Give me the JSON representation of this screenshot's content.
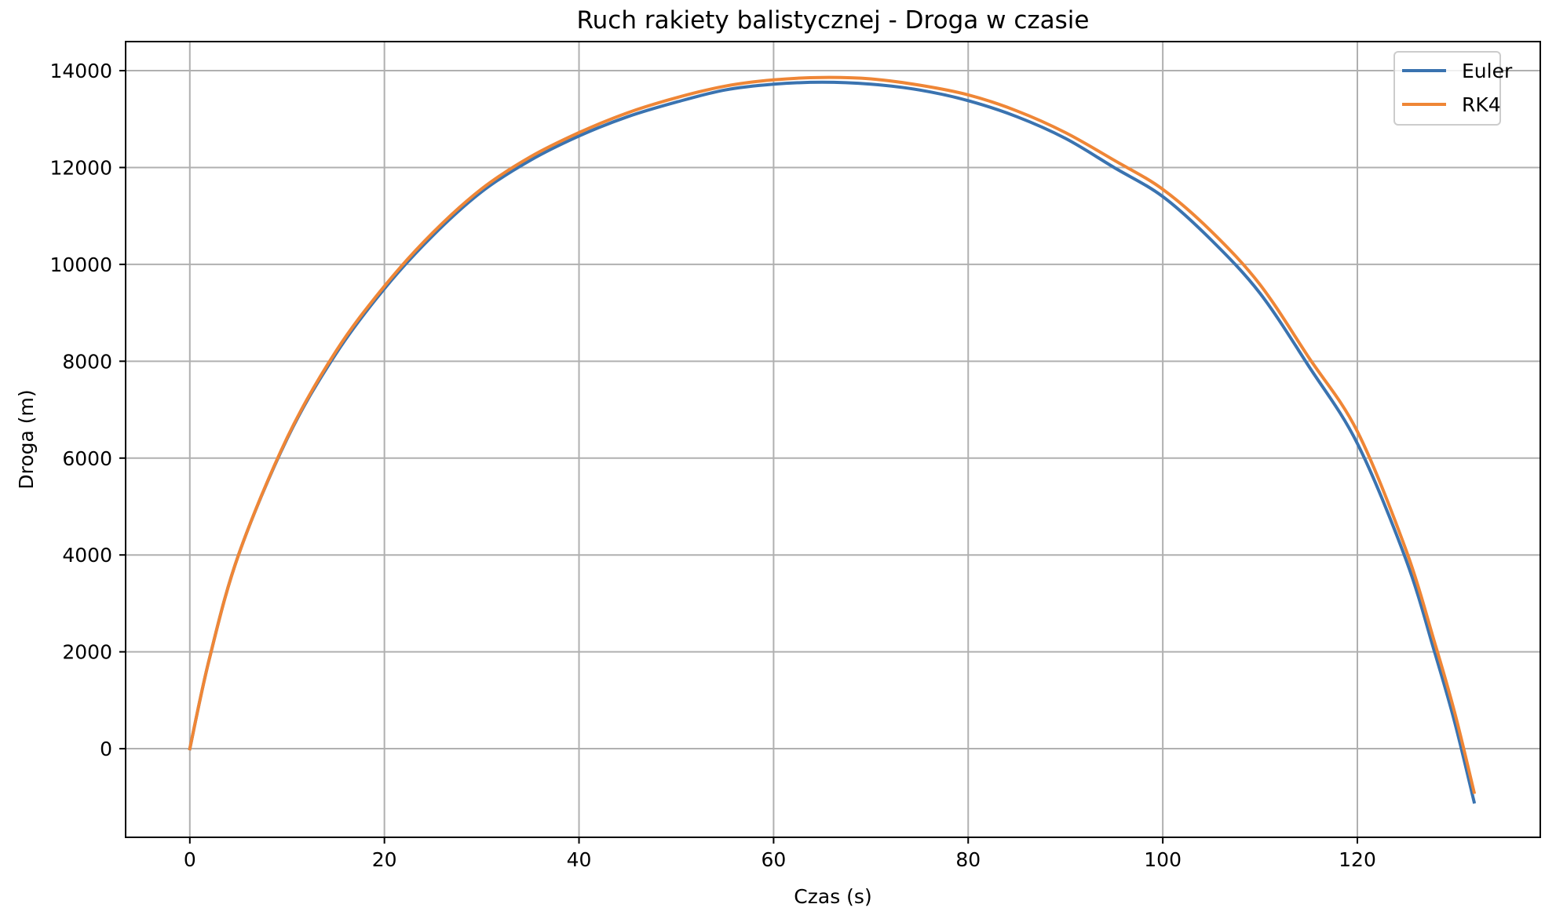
{
  "chart_data": {
    "type": "line",
    "title": "Ruch rakiety balistycznej - Droga w czasie",
    "xlabel": "Czas (s)",
    "ylabel": "Droga (m)",
    "xlim": [
      -6.6,
      138.8
    ],
    "ylim": [
      -1830,
      14600
    ],
    "xticks": [
      0,
      20,
      40,
      60,
      80,
      100,
      120
    ],
    "yticks": [
      0,
      2000,
      4000,
      6000,
      8000,
      10000,
      12000,
      14000
    ],
    "grid": true,
    "legend_position": "top-right",
    "series": [
      {
        "name": "Euler",
        "color": "#3a73b0",
        "x": [
          0,
          2,
          5,
          10,
          15,
          20,
          25,
          30,
          35,
          40,
          45,
          50,
          55,
          60,
          65,
          70,
          75,
          80,
          85,
          90,
          95,
          100,
          105,
          110,
          115,
          120,
          125,
          128,
          130,
          132
        ],
        "y": [
          0,
          1850,
          4000,
          6400,
          8150,
          9500,
          10600,
          11500,
          12150,
          12650,
          13050,
          13350,
          13600,
          13720,
          13760,
          13720,
          13600,
          13380,
          13050,
          12600,
          12000,
          11400,
          10500,
          9400,
          7900,
          6300,
          3900,
          1950,
          550,
          -1100
        ]
      },
      {
        "name": "RK4",
        "color": "#ef8636",
        "x": [
          0,
          2,
          5,
          10,
          15,
          20,
          25,
          30,
          35,
          40,
          45,
          50,
          55,
          60,
          65,
          70,
          75,
          80,
          85,
          90,
          95,
          100,
          105,
          110,
          115,
          120,
          125,
          128,
          130,
          132
        ],
        "y": [
          0,
          1850,
          4000,
          6420,
          8200,
          9550,
          10660,
          11560,
          12220,
          12720,
          13130,
          13440,
          13680,
          13810,
          13860,
          13830,
          13700,
          13500,
          13170,
          12720,
          12150,
          11550,
          10680,
          9580,
          8080,
          6550,
          4100,
          2150,
          750,
          -900
        ]
      }
    ]
  }
}
